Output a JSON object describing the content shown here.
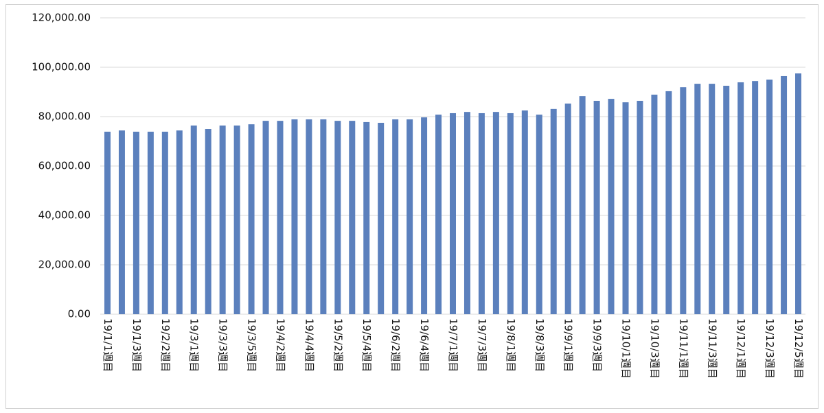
{
  "chart_data": {
    "type": "bar",
    "categories": [
      "19/1/1週目",
      null,
      "19/1/3週目",
      null,
      "19/2/2週目",
      null,
      "19/3/1週目",
      null,
      "19/3/3週目",
      null,
      "19/3/5週目",
      null,
      "19/4/2週目",
      null,
      "19/4/4週目",
      null,
      "19/5/2週目",
      null,
      "19/5/4週目",
      null,
      "19/6/2週目",
      null,
      "19/6/4週目",
      null,
      "19/7/1週目",
      null,
      "19/7/3週目",
      null,
      "19/8/1週目",
      null,
      "19/8/3週目",
      null,
      "19/9/1週目",
      null,
      "19/9/3週目",
      null,
      "19/10/1週目",
      null,
      "19/10/3週目",
      null,
      "19/11/1週目",
      null,
      "19/11/3週目",
      null,
      "19/12/1週目",
      null,
      "19/12/3週目",
      null,
      "19/12/5週目"
    ],
    "values": [
      73900,
      74400,
      73900,
      73900,
      73900,
      74400,
      76400,
      75000,
      76400,
      76400,
      76900,
      78300,
      78300,
      78900,
      78900,
      78900,
      78300,
      78300,
      77800,
      77500,
      78900,
      78900,
      79700,
      80800,
      81400,
      81900,
      81400,
      81900,
      81400,
      82500,
      80800,
      83100,
      85300,
      88300,
      86400,
      87200,
      85800,
      86400,
      88900,
      90300,
      91900,
      93300,
      93300,
      92500,
      93900,
      94400,
      95000,
      96400,
      97500
    ],
    "color": "#5b80bd",
    "ylim": [
      0,
      120000
    ],
    "yticks": [
      {
        "value": 0,
        "label": "0.00"
      },
      {
        "value": 20000,
        "label": "20,000.00"
      },
      {
        "value": 40000,
        "label": "40,000.00"
      },
      {
        "value": 60000,
        "label": "60,000.00"
      },
      {
        "value": 80000,
        "label": "80,000.00"
      },
      {
        "value": 100000,
        "label": "100,000.00"
      },
      {
        "value": 120000,
        "label": "120,000.00"
      }
    ],
    "grid": true
  }
}
